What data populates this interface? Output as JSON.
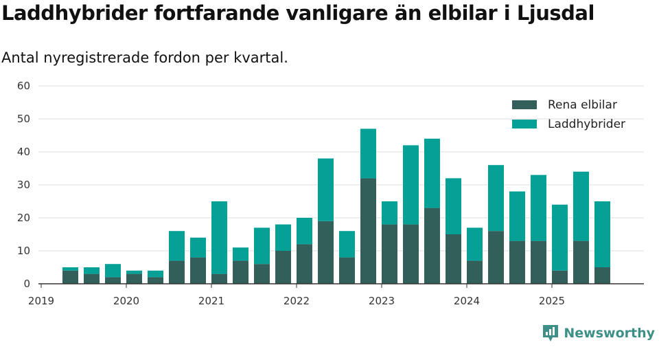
{
  "chart_data": {
    "type": "bar",
    "stacked": true,
    "title": "Laddhybrider fortfarande vanligare än elbilar i Ljusdal",
    "subtitle": "Antal nyregistrerade fordon per kvartal.",
    "xlabel": "",
    "ylabel": "",
    "ylim": [
      0,
      60
    ],
    "yticks": [
      0,
      10,
      20,
      30,
      40,
      50,
      60
    ],
    "xticks": [
      "2019",
      "2020",
      "2021",
      "2022",
      "2023",
      "2024",
      "2025"
    ],
    "categories": [
      "2019 Q2",
      "2019 Q3",
      "2019 Q4",
      "2020 Q1",
      "2020 Q2",
      "2020 Q3",
      "2020 Q4",
      "2021 Q1",
      "2021 Q2",
      "2021 Q3",
      "2021 Q4",
      "2022 Q1",
      "2022 Q2",
      "2022 Q3",
      "2022 Q4",
      "2023 Q1",
      "2023 Q2",
      "2023 Q3",
      "2023 Q4",
      "2024 Q1",
      "2024 Q2",
      "2024 Q3",
      "2024 Q4",
      "2025 Q1",
      "2025 Q2",
      "2025 Q3"
    ],
    "series": [
      {
        "name": "Rena elbilar",
        "color": "#335f5b",
        "values": [
          4,
          3,
          2,
          3,
          2,
          7,
          8,
          3,
          7,
          6,
          10,
          12,
          19,
          8,
          32,
          18,
          18,
          23,
          15,
          7,
          16,
          13,
          13,
          4,
          13,
          5
        ]
      },
      {
        "name": "Laddhybrider",
        "color": "#05a197",
        "values": [
          1,
          2,
          4,
          1,
          2,
          9,
          6,
          22,
          4,
          11,
          8,
          8,
          19,
          8,
          15,
          7,
          24,
          21,
          17,
          10,
          20,
          15,
          20,
          20,
          21,
          20
        ]
      }
    ],
    "legend_position": "top-right",
    "grid": true
  },
  "brand": {
    "name": "Newsworthy",
    "icon": "newsworthy-logo-icon"
  }
}
